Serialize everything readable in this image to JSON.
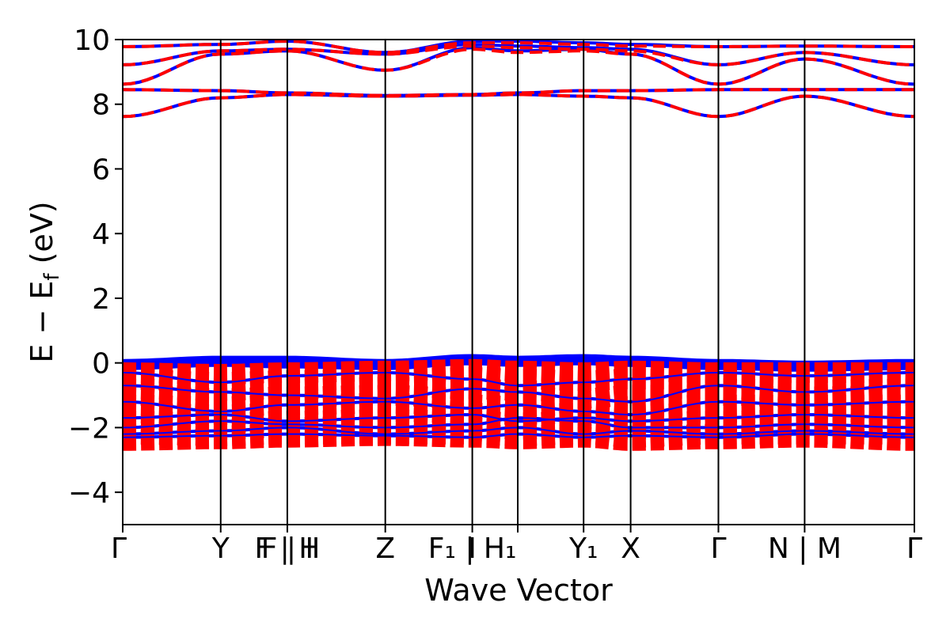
{
  "chart_data": {
    "type": "line",
    "title": "",
    "xlabel": "Wave Vector",
    "ylabel_main": "E − E",
    "ylabel_sub": "f",
    "ylabel_unit": " (eV)",
    "ylim": [
      -5,
      10
    ],
    "yticks": [
      -4,
      -2,
      0,
      2,
      4,
      6,
      8,
      10
    ],
    "yticks_text": [
      "−4",
      "−2",
      "0",
      "2",
      "4",
      "6",
      "8",
      "10"
    ],
    "kpath_positions": [
      0,
      1.25,
      2.1,
      3.35,
      4.46,
      5.04,
      5.88,
      6.48,
      7.6,
      8.7,
      10.1
    ],
    "kpoint_labels": [
      {
        "pos": 0,
        "label": "Γ"
      },
      {
        "pos": 1.25,
        "label": "Y"
      },
      {
        "pos": 2.1,
        "label": "F | H",
        "layered": "F | I"
      },
      {
        "pos": 3.35,
        "label": "Z"
      },
      {
        "pos": 4.46,
        "label": "F₁ | H₁",
        "layered": "I"
      },
      {
        "pos": 5.88,
        "label": "Y₁"
      },
      {
        "pos": 6.48,
        "label": "X"
      },
      {
        "pos": 7.6,
        "label": "Γ"
      },
      {
        "pos": 8.7,
        "label": "N | M"
      },
      {
        "pos": 10.1,
        "label": "Γ"
      }
    ],
    "series": [
      {
        "style": "solid",
        "color": "#0000ff",
        "conduction_bands": [
          [
            7.62,
            8.2,
            8.3,
            8.25,
            8.28,
            8.3,
            8.25,
            8.2,
            7.62,
            8.25,
            7.62
          ],
          [
            8.45,
            8.42,
            8.35,
            8.27,
            8.3,
            8.35,
            8.42,
            8.42,
            8.45,
            8.45,
            8.45
          ],
          [
            8.62,
            9.55,
            9.65,
            9.05,
            9.75,
            9.65,
            9.7,
            9.55,
            8.62,
            9.4,
            8.62
          ],
          [
            9.22,
            9.65,
            9.7,
            9.55,
            9.85,
            9.8,
            9.75,
            9.7,
            9.22,
            9.6,
            9.22
          ],
          [
            9.78,
            9.85,
            9.95,
            9.6,
            9.95,
            9.95,
            9.9,
            9.85,
            9.78,
            9.8,
            9.78
          ]
        ],
        "valence_bands": [
          [
            0.0,
            0.1,
            0.1,
            0.0,
            0.15,
            0.1,
            0.15,
            0.1,
            0.0,
            -0.05,
            0.0
          ],
          [
            -0.1,
            0.0,
            -0.05,
            -0.1,
            0.05,
            0.0,
            0.05,
            0.0,
            -0.1,
            -0.15,
            -0.1
          ],
          [
            -0.3,
            -0.6,
            -0.4,
            -0.3,
            -0.5,
            -0.7,
            -0.6,
            -0.5,
            -0.3,
            -0.4,
            -0.3
          ],
          [
            -0.7,
            -0.9,
            -1.0,
            -1.1,
            -0.8,
            -0.9,
            -1.1,
            -1.2,
            -0.7,
            -0.9,
            -0.7
          ],
          [
            -1.2,
            -1.5,
            -1.3,
            -1.2,
            -1.4,
            -1.3,
            -1.5,
            -1.6,
            -1.2,
            -1.3,
            -1.2
          ],
          [
            -1.7,
            -1.6,
            -1.8,
            -1.7,
            -1.6,
            -1.8,
            -1.7,
            -1.8,
            -1.7,
            -1.6,
            -1.7
          ],
          [
            -2.0,
            -1.8,
            -1.9,
            -2.0,
            -1.9,
            -1.7,
            -1.8,
            -2.0,
            -2.0,
            -1.9,
            -2.0
          ],
          [
            -2.2,
            -2.1,
            -2.0,
            -2.2,
            -2.1,
            -2.0,
            -2.2,
            -2.1,
            -2.2,
            -2.1,
            -2.2
          ],
          [
            -2.3,
            -2.25,
            -2.2,
            -2.25,
            -2.3,
            -2.2,
            -2.3,
            -2.25,
            -2.3,
            -2.2,
            -2.3
          ]
        ]
      },
      {
        "style": "dashed",
        "color": "#ff0000",
        "conduction_bands": [
          [
            7.62,
            8.2,
            8.3,
            8.25,
            8.28,
            8.3,
            8.25,
            8.2,
            7.62,
            8.25,
            7.62
          ],
          [
            8.45,
            8.42,
            8.35,
            8.27,
            8.3,
            8.35,
            8.42,
            8.42,
            8.45,
            8.45,
            8.45
          ],
          [
            8.62,
            9.55,
            9.65,
            9.05,
            9.7,
            9.6,
            9.65,
            9.55,
            8.62,
            9.4,
            8.62
          ],
          [
            9.22,
            9.65,
            9.7,
            9.55,
            9.8,
            9.75,
            9.7,
            9.65,
            9.22,
            9.6,
            9.22
          ],
          [
            9.78,
            9.85,
            9.95,
            9.6,
            9.9,
            9.9,
            9.85,
            9.8,
            9.78,
            9.8,
            9.78
          ]
        ],
        "valence_bands": [
          [
            -0.3,
            -0.35,
            -0.3,
            -0.25,
            -0.2,
            -0.25,
            -0.3,
            -0.25,
            -0.3,
            -0.3,
            -0.3
          ],
          [
            -0.5,
            -0.6,
            -0.55,
            -0.5,
            -0.45,
            -0.5,
            -0.55,
            -0.5,
            -0.5,
            -0.55,
            -0.5
          ],
          [
            -0.8,
            -0.85,
            -0.8,
            -0.75,
            -0.8,
            -0.85,
            -0.9,
            -0.8,
            -0.8,
            -0.85,
            -0.8
          ],
          [
            -1.0,
            -1.1,
            -1.05,
            -1.0,
            -1.1,
            -1.05,
            -1.1,
            -1.0,
            -1.0,
            -1.05,
            -1.0
          ],
          [
            -1.3,
            -1.35,
            -1.3,
            -1.25,
            -1.3,
            -1.35,
            -1.3,
            -1.35,
            -1.3,
            -1.3,
            -1.3
          ],
          [
            -1.55,
            -1.6,
            -1.55,
            -1.5,
            -1.55,
            -1.6,
            -1.55,
            -1.6,
            -1.55,
            -1.5,
            -1.55
          ],
          [
            -1.8,
            -1.85,
            -1.8,
            -1.75,
            -1.8,
            -1.85,
            -1.8,
            -1.85,
            -1.8,
            -1.75,
            -1.8
          ],
          [
            -2.0,
            -2.05,
            -2.0,
            -1.95,
            -2.0,
            -2.05,
            -2.0,
            -2.05,
            -2.0,
            -1.95,
            -2.0
          ],
          [
            -2.2,
            -2.25,
            -2.2,
            -2.2,
            -2.2,
            -2.25,
            -2.2,
            -2.3,
            -2.2,
            -2.2,
            -2.2
          ],
          [
            -2.4,
            -2.35,
            -2.3,
            -2.25,
            -2.3,
            -2.35,
            -2.3,
            -2.4,
            -2.35,
            -2.3,
            -2.4
          ]
        ]
      }
    ],
    "grid": false,
    "legend": "none"
  }
}
